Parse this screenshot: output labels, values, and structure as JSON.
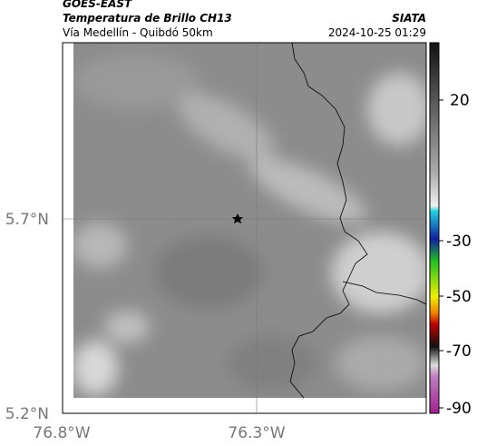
{
  "header": {
    "satellite": "GOES-EAST",
    "product": "Temperatura de Brillo CH13",
    "region": "Vía Medellín - Quibdó 50km",
    "source": "SIATA",
    "timestamp": "2024-10-25 01:29"
  },
  "map": {
    "lat_labels": [
      "5.7°N",
      "5.2°N"
    ],
    "lon_labels": [
      "76.8°W",
      "76.3°W"
    ]
  },
  "colorbar": {
    "tick_labels": [
      "20",
      "-30",
      "-50",
      "-70",
      "-90"
    ]
  }
}
